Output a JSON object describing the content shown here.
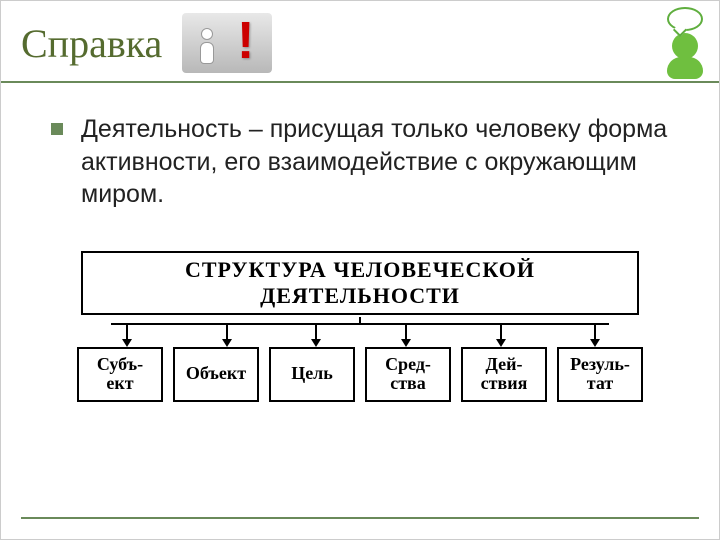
{
  "colors": {
    "accent": "#6a8a5a",
    "title": "#556b2f",
    "text": "#222222",
    "border": "#000000",
    "exclaim": "#cc0000",
    "green_figure": "#6fbf3f"
  },
  "title": "Справка",
  "bullet_text": "Деятельность – присущая только человеку форма активности, его взаимодействие с окружающим миром.",
  "diagram": {
    "type": "tree",
    "header": "СТРУКТУРА ЧЕЛОВЕЧЕСКОЙ ДЕЯТЕЛЬНОСТИ",
    "header_fontsize": 22,
    "node_fontsize": 18,
    "node_border_color": "#000000",
    "node_border_width": 2,
    "nodes": [
      {
        "label": "Субъ-\nект"
      },
      {
        "label": "Объект"
      },
      {
        "label": "Цель"
      },
      {
        "label": "Сред-\nства"
      },
      {
        "label": "Дей-\nствия"
      },
      {
        "label": "Резуль-\nтат"
      }
    ],
    "arrow_positions_pct": [
      8,
      26,
      42,
      58,
      75,
      92
    ]
  }
}
